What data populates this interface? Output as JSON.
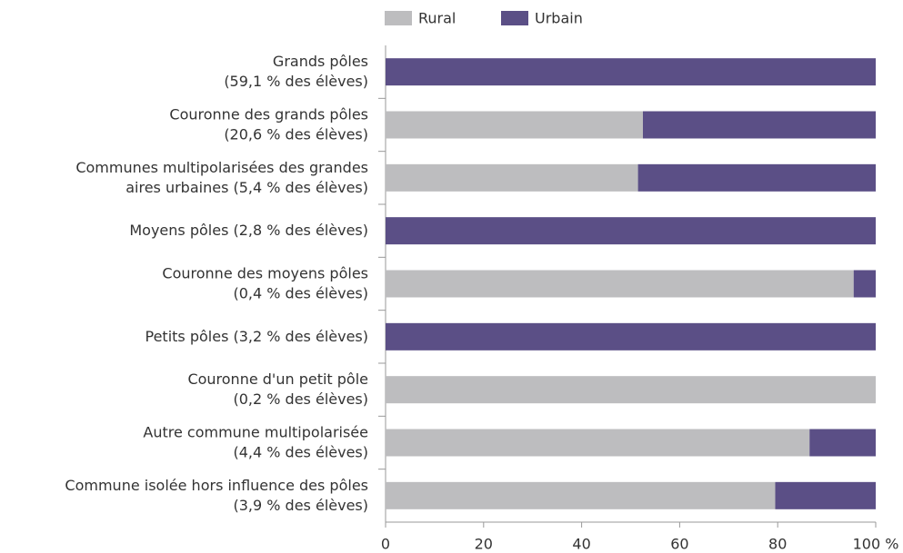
{
  "chart_data": {
    "type": "stacked_barh",
    "categories": [
      [
        "Grands pôles",
        "(59,1 % des élèves)"
      ],
      [
        "Couronne des grands pôles",
        "(20,6 % des élèves)"
      ],
      [
        "Communes multipolarisées des grandes",
        "aires urbaines (5,4 % des élèves)"
      ],
      [
        "Moyens pôles (2,8 % des élèves)"
      ],
      [
        "Couronne des moyens pôles",
        "(0,4 % des élèves)"
      ],
      [
        "Petits pôles (3,2 % des élèves)"
      ],
      [
        "Couronne d'un petit pôle",
        "(0,2 % des élèves)"
      ],
      [
        "Autre commune multipolarisée",
        "(4,4 % des élèves)"
      ],
      [
        "Commune isolée hors influence des pôles",
        "(3,9 % des élèves)"
      ]
    ],
    "series": [
      {
        "name": "Rural",
        "color": "#bdbdbf",
        "values": [
          0,
          52.5,
          51.5,
          0,
          95.5,
          0,
          100,
          86.5,
          79.5
        ]
      },
      {
        "name": "Urbain",
        "color": "#5b4f86",
        "values": [
          100,
          47.5,
          48.5,
          100,
          4.5,
          100,
          0,
          13.5,
          20.5
        ]
      }
    ],
    "xlim": [
      0,
      100
    ],
    "xticks": [
      0,
      20,
      40,
      60,
      80,
      {
        "value": 100,
        "label": "100 %"
      }
    ],
    "legend": "top"
  }
}
